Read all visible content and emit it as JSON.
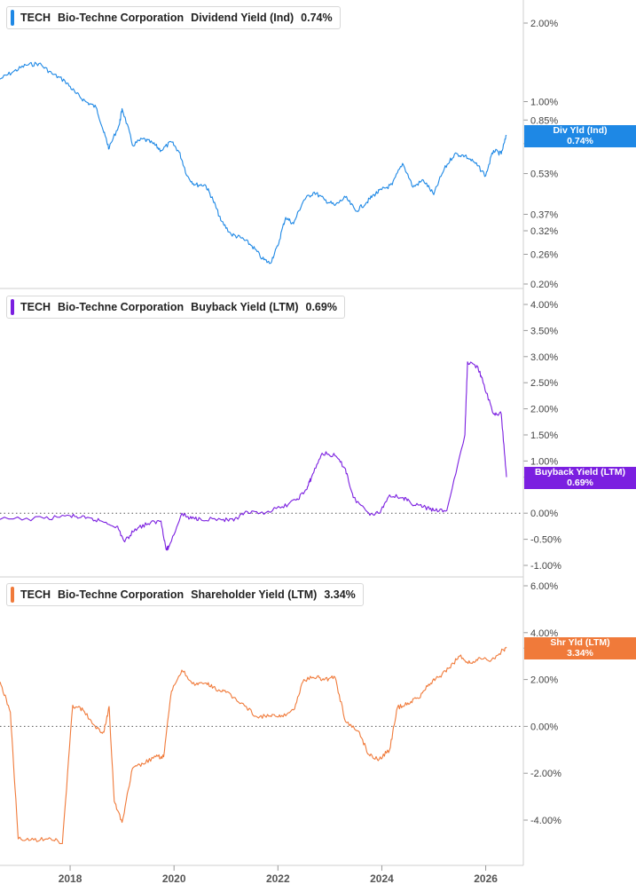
{
  "panels": [
    {
      "ticker": "TECH",
      "company": "Bio-Techne Corporation",
      "metric": "Dividend Yield (Ind)",
      "value": "0.74%",
      "color": "#1e88e5",
      "tag_label": "Div Yld (Ind)",
      "tag_value": "0.74%"
    },
    {
      "ticker": "TECH",
      "company": "Bio-Techne Corporation",
      "metric": "Buyback Yield (LTM)",
      "value": "0.69%",
      "color": "#7b1fe0",
      "tag_label": "Buyback Yield (LTM)",
      "tag_value": "0.69%"
    },
    {
      "ticker": "TECH",
      "company": "Bio-Techne Corporation",
      "metric": "Shareholder Yield (LTM)",
      "value": "3.34%",
      "color": "#f07a3a",
      "tag_label": "Shr Yld (LTM)",
      "tag_value": "3.34%"
    }
  ],
  "x_ticks": [
    "2018",
    "2020",
    "2022",
    "2024",
    "2026"
  ],
  "chart_data": [
    {
      "type": "line",
      "title": "TECH Bio-Techne Corporation Dividend Yield (Ind) 0.74%",
      "scale": "log",
      "ylim": [
        0.19,
        2.6
      ],
      "yticks": [
        2.0,
        1.0,
        0.85,
        0.69,
        0.53,
        0.37,
        0.32,
        0.26,
        0.2
      ],
      "ytick_labels": [
        "2.00%",
        "1.00%",
        "0.85%",
        "0.69%",
        "0.53%",
        "0.37%",
        "0.32%",
        "0.26%",
        "0.20%"
      ],
      "series": [
        {
          "name": "Div Yld (Ind)",
          "x": [
            2016.65,
            2016.9,
            2017.15,
            2017.4,
            2017.65,
            2017.9,
            2018.1,
            2018.3,
            2018.5,
            2018.65,
            2018.75,
            2018.95,
            2019.0,
            2019.2,
            2019.4,
            2019.6,
            2019.75,
            2019.95,
            2020.1,
            2020.25,
            2020.4,
            2020.6,
            2020.75,
            2020.9,
            2021.1,
            2021.3,
            2021.5,
            2021.7,
            2021.85,
            2022.0,
            2022.15,
            2022.3,
            2022.5,
            2022.7,
            2022.9,
            2023.1,
            2023.3,
            2023.5,
            2023.7,
            2023.85,
            2024.0,
            2024.2,
            2024.4,
            2024.6,
            2024.8,
            2025.0,
            2025.2,
            2025.4,
            2025.6,
            2025.8,
            2026.0,
            2026.15,
            2026.3,
            2026.4
          ],
          "y": [
            1.22,
            1.3,
            1.38,
            1.4,
            1.28,
            1.2,
            1.08,
            1.0,
            0.95,
            0.76,
            0.66,
            0.82,
            0.94,
            0.68,
            0.72,
            0.69,
            0.65,
            0.7,
            0.64,
            0.52,
            0.48,
            0.48,
            0.42,
            0.35,
            0.31,
            0.3,
            0.28,
            0.25,
            0.24,
            0.28,
            0.36,
            0.34,
            0.42,
            0.45,
            0.42,
            0.4,
            0.43,
            0.38,
            0.41,
            0.44,
            0.46,
            0.48,
            0.58,
            0.47,
            0.5,
            0.44,
            0.55,
            0.63,
            0.62,
            0.58,
            0.52,
            0.65,
            0.63,
            0.74
          ]
        }
      ]
    },
    {
      "type": "line",
      "title": "TECH Bio-Techne Corporation Buyback Yield (LTM) 0.69%",
      "ylim": [
        -1.1,
        4.2
      ],
      "yticks": [
        4.0,
        3.5,
        3.0,
        2.5,
        2.0,
        1.5,
        1.0,
        0.69,
        0.0,
        -0.5,
        -1.0
      ],
      "ytick_labels": [
        "4.00%",
        "3.50%",
        "3.00%",
        "2.50%",
        "2.00%",
        "1.50%",
        "1.00%",
        "0.69%",
        "0.00%",
        "-0.50%",
        "-1.00%"
      ],
      "series": [
        {
          "name": "Buyback Yield (LTM)",
          "x": [
            2016.65,
            2017.5,
            2018.0,
            2018.3,
            2018.6,
            2018.9,
            2019.05,
            2019.25,
            2019.5,
            2019.75,
            2019.85,
            2019.9,
            2020.15,
            2020.3,
            2020.5,
            2020.9,
            2021.15,
            2021.35,
            2021.65,
            2022.05,
            2022.35,
            2022.55,
            2022.65,
            2022.85,
            2023.1,
            2023.3,
            2023.45,
            2023.75,
            2023.95,
            2024.15,
            2024.4,
            2024.55,
            2024.8,
            2025.0,
            2025.25,
            2025.6,
            2025.65,
            2025.85,
            2025.95,
            2026.15,
            2026.3,
            2026.4
          ],
          "y": [
            -0.12,
            -0.1,
            -0.05,
            -0.1,
            -0.15,
            -0.25,
            -0.55,
            -0.3,
            -0.2,
            -0.15,
            -0.7,
            -0.65,
            0.0,
            -0.1,
            -0.1,
            -0.12,
            -0.15,
            0.0,
            0.0,
            0.1,
            0.25,
            0.45,
            0.7,
            1.15,
            1.1,
            0.85,
            0.3,
            0.0,
            0.0,
            0.35,
            0.3,
            0.2,
            0.12,
            0.05,
            0.05,
            1.5,
            2.9,
            2.8,
            2.5,
            1.9,
            1.9,
            0.69
          ]
        }
      ]
    },
    {
      "type": "line",
      "title": "TECH Bio-Techne Corporation Shareholder Yield (LTM) 3.34%",
      "ylim": [
        -4.8,
        6.4
      ],
      "yticks": [
        6.0,
        4.0,
        3.34,
        2.0,
        0.0,
        -2.0,
        -4.0
      ],
      "ytick_labels": [
        "6.00%",
        "4.00%",
        "3.34%",
        "2.00%",
        "0.00%",
        "-2.00%",
        "-4.00%"
      ],
      "series": [
        {
          "name": "Shr Yld (LTM)",
          "x": [
            2016.65,
            2016.85,
            2017.0,
            2017.3,
            2017.6,
            2017.85,
            2018.05,
            2018.25,
            2018.5,
            2018.65,
            2018.75,
            2018.85,
            2019.0,
            2019.2,
            2019.4,
            2019.65,
            2019.8,
            2019.95,
            2020.15,
            2020.4,
            2020.6,
            2020.8,
            2021.0,
            2021.3,
            2021.6,
            2021.85,
            2022.05,
            2022.3,
            2022.5,
            2022.75,
            2022.9,
            2023.1,
            2023.3,
            2023.55,
            2023.75,
            2023.95,
            2024.15,
            2024.3,
            2024.5,
            2024.7,
            2024.9,
            2025.1,
            2025.3,
            2025.5,
            2025.7,
            2025.9,
            2026.1,
            2026.3,
            2026.4
          ],
          "y": [
            1.9,
            0.6,
            -4.8,
            -4.85,
            -4.75,
            -5.0,
            0.9,
            0.7,
            -0.1,
            -0.25,
            0.85,
            -3.2,
            -4.1,
            -1.8,
            -1.6,
            -1.3,
            -1.3,
            1.5,
            2.4,
            1.75,
            1.85,
            1.6,
            1.45,
            1.0,
            0.4,
            0.45,
            0.4,
            0.7,
            2.0,
            2.1,
            2.0,
            2.1,
            0.2,
            -0.2,
            -1.2,
            -1.4,
            -1.0,
            0.8,
            1.0,
            1.2,
            1.8,
            2.1,
            2.5,
            3.0,
            2.7,
            2.9,
            2.8,
            3.2,
            3.34
          ]
        }
      ]
    }
  ]
}
